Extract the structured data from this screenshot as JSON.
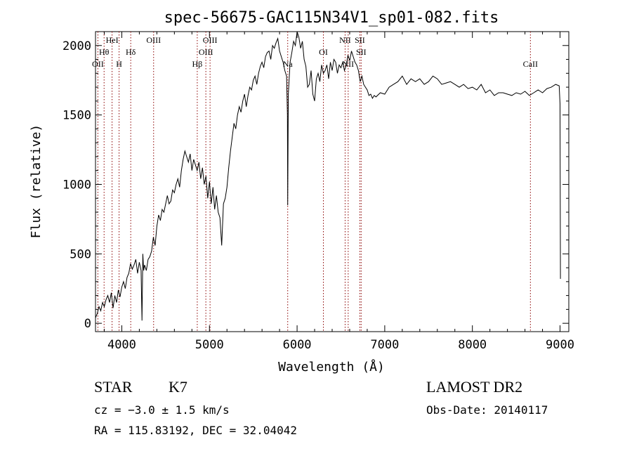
{
  "chart_data": {
    "type": "line",
    "title": "spec-56675-GAC115N34V1_sp01-082.fits",
    "xlabel": "Wavelength (Å)",
    "ylabel": "Flux (relative)",
    "xlim": [
      3700,
      9100
    ],
    "ylim": [
      -60,
      2100
    ],
    "xticks": [
      4000,
      5000,
      6000,
      7000,
      8000,
      9000
    ],
    "yticks": [
      0,
      500,
      1000,
      1500,
      2000
    ],
    "grid": false,
    "line_color": "#000000",
    "marker_color": "#8b0000",
    "series": [
      {
        "x": [
          3700,
          3720,
          3740,
          3760,
          3780,
          3800,
          3820,
          3840,
          3860,
          3880,
          3900,
          3920,
          3940,
          3960,
          3980,
          4000,
          4020,
          4040,
          4060,
          4080,
          4100,
          4120,
          4140,
          4160,
          4180,
          4200,
          4220,
          4230,
          4240,
          4250,
          4260,
          4280,
          4300,
          4320,
          4340,
          4360,
          4380,
          4400,
          4420,
          4440,
          4460,
          4480,
          4500,
          4520,
          4540,
          4560,
          4580,
          4600,
          4620,
          4640,
          4660,
          4680,
          4700,
          4720,
          4740,
          4760,
          4780,
          4800,
          4820,
          4840,
          4860,
          4880,
          4900,
          4920,
          4940,
          4960,
          4980,
          5000,
          5020,
          5040,
          5060,
          5080,
          5100,
          5120,
          5140,
          5160,
          5180,
          5200,
          5220,
          5240,
          5260,
          5280,
          5300,
          5320,
          5340,
          5360,
          5380,
          5400,
          5420,
          5440,
          5460,
          5480,
          5500,
          5520,
          5540,
          5560,
          5580,
          5600,
          5620,
          5640,
          5660,
          5680,
          5700,
          5720,
          5740,
          5760,
          5780,
          5800,
          5820,
          5840,
          5860,
          5880,
          5890,
          5893,
          5900,
          5920,
          5940,
          5960,
          5980,
          6000,
          6020,
          6040,
          6060,
          6080,
          6100,
          6120,
          6140,
          6160,
          6180,
          6200,
          6220,
          6240,
          6260,
          6280,
          6300,
          6320,
          6340,
          6360,
          6380,
          6400,
          6420,
          6440,
          6460,
          6480,
          6500,
          6520,
          6540,
          6560,
          6580,
          6600,
          6620,
          6640,
          6660,
          6680,
          6700,
          6720,
          6740,
          6760,
          6780,
          6800,
          6820,
          6840,
          6860,
          6880,
          6900,
          6950,
          7000,
          7050,
          7100,
          7150,
          7200,
          7250,
          7300,
          7350,
          7400,
          7450,
          7500,
          7550,
          7600,
          7650,
          7700,
          7750,
          7800,
          7850,
          7900,
          7950,
          8000,
          8050,
          8100,
          8150,
          8200,
          8250,
          8300,
          8350,
          8400,
          8450,
          8500,
          8550,
          8600,
          8650,
          8700,
          8750,
          8800,
          8850,
          8900,
          8950,
          8990,
          9000,
          9005
        ],
        "y": [
          40,
          70,
          120,
          90,
          150,
          120,
          170,
          200,
          150,
          220,
          110,
          200,
          150,
          240,
          190,
          260,
          300,
          250,
          330,
          360,
          430,
          390,
          420,
          460,
          360,
          440,
          380,
          20,
          500,
          380,
          420,
          380,
          460,
          480,
          520,
          620,
          560,
          700,
          780,
          740,
          820,
          800,
          860,
          920,
          860,
          880,
          960,
          940,
          1000,
          1040,
          980,
          1100,
          1180,
          1240,
          1200,
          1160,
          1220,
          1100,
          1180,
          1140,
          1100,
          1160,
          1040,
          1120,
          1000,
          1060,
          900,
          1020,
          860,
          980,
          820,
          920,
          800,
          760,
          560,
          860,
          900,
          980,
          1120,
          1240,
          1340,
          1440,
          1400,
          1500,
          1560,
          1520,
          1600,
          1650,
          1560,
          1640,
          1700,
          1680,
          1750,
          1780,
          1720,
          1800,
          1850,
          1880,
          1840,
          1920,
          1950,
          1960,
          1900,
          2000,
          1980,
          2020,
          2050,
          1960,
          1920,
          1880,
          1820,
          1780,
          1500,
          850,
          1650,
          1880,
          1950,
          2030,
          2000,
          2100,
          2060,
          1980,
          2030,
          1900,
          1850,
          1700,
          1720,
          1820,
          1650,
          1600,
          1760,
          1800,
          1740,
          1860,
          1800,
          1820,
          1860,
          1760,
          1880,
          1820,
          1900,
          1880,
          1800,
          1860,
          1840,
          1880,
          1820,
          1860,
          1930,
          1890,
          1960,
          1920,
          1880,
          1860,
          1820,
          1740,
          1780,
          1720,
          1700,
          1680,
          1640,
          1650,
          1620,
          1640,
          1630,
          1660,
          1650,
          1700,
          1720,
          1740,
          1780,
          1720,
          1760,
          1740,
          1760,
          1720,
          1740,
          1780,
          1760,
          1720,
          1730,
          1740,
          1720,
          1700,
          1720,
          1690,
          1700,
          1680,
          1720,
          1660,
          1680,
          1640,
          1660,
          1660,
          1650,
          1640,
          1660,
          1650,
          1670,
          1640,
          1660,
          1680,
          1660,
          1690,
          1700,
          1720,
          1710,
          1580,
          320
        ]
      }
    ],
    "line_markers": [
      {
        "label": "OII",
        "x": 3727,
        "row": 3
      },
      {
        "label": "Hθ",
        "x": 3798,
        "row": 2
      },
      {
        "label": "HeI",
        "x": 3889,
        "row": 1
      },
      {
        "label": "H",
        "x": 3969,
        "row": 3
      },
      {
        "label": "Hδ",
        "x": 4102,
        "row": 2
      },
      {
        "label": "OIII",
        "x": 4363,
        "row": 1
      },
      {
        "label": "Hβ",
        "x": 4861,
        "row": 3
      },
      {
        "label": "OIII",
        "x": 4959,
        "row": 2
      },
      {
        "label": "OIII",
        "x": 5007,
        "row": 1
      },
      {
        "label": "Na",
        "x": 5893,
        "row": 3
      },
      {
        "label": "OI",
        "x": 6300,
        "row": 2
      },
      {
        "label": "NII",
        "x": 6548,
        "row": 1
      },
      {
        "label": "NII",
        "x": 6583,
        "row": 3
      },
      {
        "label": "SII",
        "x": 6716,
        "row": 1
      },
      {
        "label": "SII",
        "x": 6731,
        "row": 2
      },
      {
        "label": "CaII",
        "x": 8662,
        "row": 3
      }
    ]
  },
  "info": {
    "object_class": "STAR",
    "subclass": "K7",
    "survey": "LAMOST DR2",
    "redshift_text": "cz = −3.0 ± 1.5 km/s",
    "obs_date": "Obs-Date: 20140117",
    "coordinates": "RA = 115.83192, DEC =  32.04042"
  }
}
